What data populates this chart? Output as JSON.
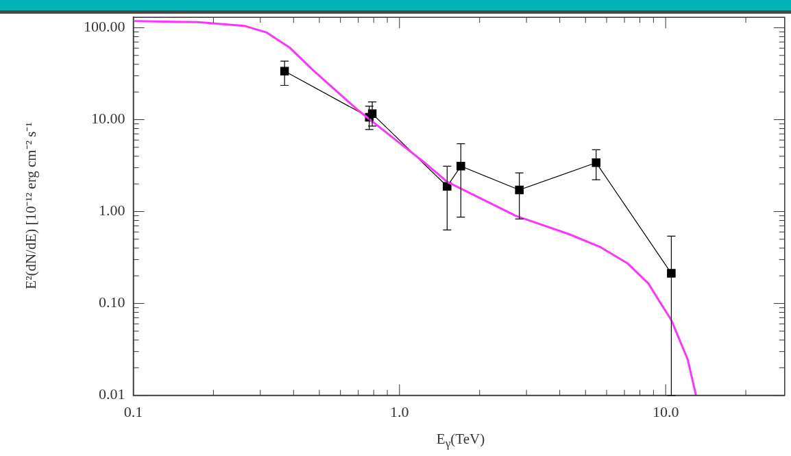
{
  "chart_data": {
    "type": "line",
    "xlabel": "E$_{γ}$(TeV)",
    "ylabel": "E²(dN/dE) [10⁻¹² erg cm⁻² s⁻¹",
    "log": "xy",
    "grid": false,
    "legend": false,
    "xlim": [
      0.1,
      28
    ],
    "ylim": [
      0.01,
      130
    ],
    "xticks": [
      {
        "value": 0.1,
        "label": "0.1"
      },
      {
        "value": 1,
        "label": "1.0"
      },
      {
        "value": 10,
        "label": "10.0"
      }
    ],
    "yticks": [
      {
        "value": 0.01,
        "label": "0.01"
      },
      {
        "value": 0.1,
        "label": "0.10"
      },
      {
        "value": 1,
        "label": "1.00"
      },
      {
        "value": 10,
        "label": "10.00"
      },
      {
        "value": 100,
        "label": "100.00"
      }
    ],
    "series": [
      {
        "color": "#ff33ff",
        "marker": "none",
        "line_style": "solid",
        "x": [
          0.101,
          0.175,
          0.261,
          0.317,
          0.386,
          0.472,
          0.575,
          0.7,
          0.857,
          1.04,
          1.27,
          1.51,
          2.73,
          4.32,
          5.69,
          7.17,
          8.61,
          9.64,
          10.5,
          12.1,
          13.0
        ],
        "values": [
          118,
          115,
          105,
          88.8,
          61.1,
          34.8,
          20.9,
          12.6,
          7.94,
          5.11,
          3.23,
          2.11,
          0.9,
          0.57,
          0.41,
          0.275,
          0.165,
          0.0976,
          0.066,
          0.0246,
          0.01
        ]
      },
      {
        "color": "#000000",
        "marker": "square",
        "line_style": "solid",
        "x": [
          0.37,
          0.77,
          0.79,
          1.51,
          1.7,
          2.82,
          5.48,
          10.5
        ],
        "values": [
          33.7,
          10.6,
          11.6,
          1.88,
          3.12,
          1.72,
          3.4,
          0.213
        ],
        "errors": [
          [
            23.6,
            43.4
          ],
          [
            7.8,
            14
          ],
          [
            8.5,
            15.6
          ],
          [
            0.63,
            3.12
          ],
          [
            0.87,
            5.47
          ],
          [
            0.83,
            2.64
          ],
          [
            2.22,
            4.7
          ],
          [
            0.01,
            0.54
          ]
        ]
      }
    ]
  }
}
